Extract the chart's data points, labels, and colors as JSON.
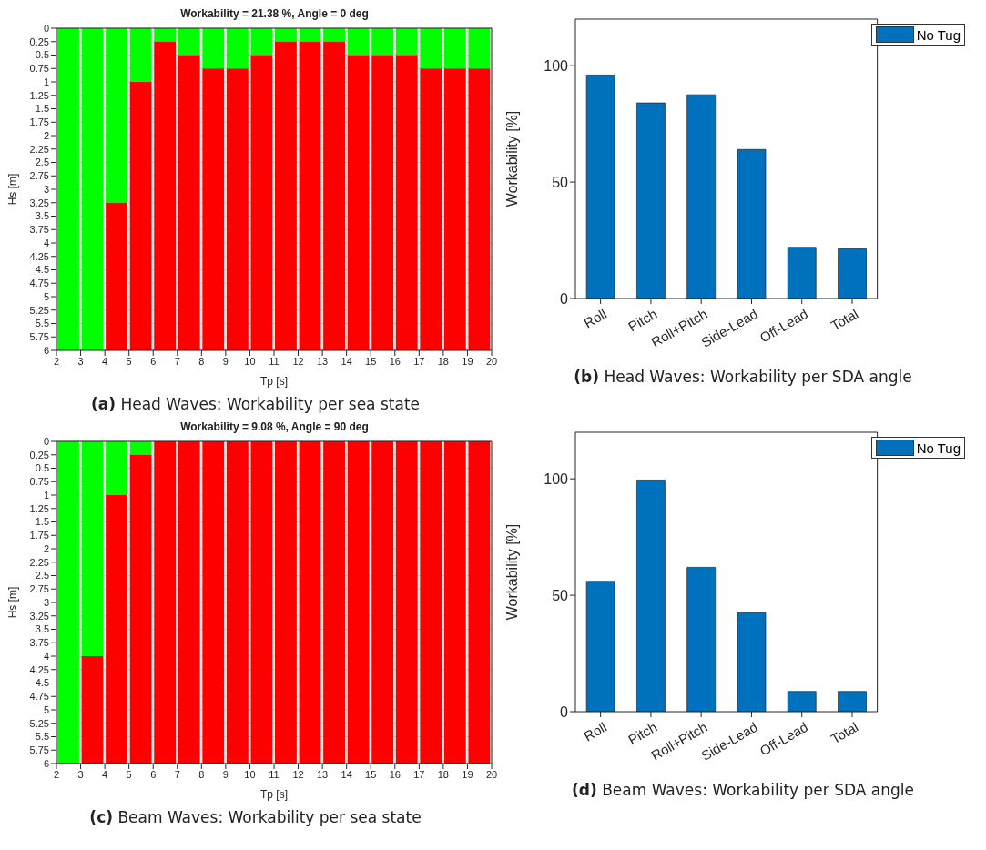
{
  "chart_data": [
    {
      "type": "bar",
      "title": "Workability = 21.38 %, Angle = 0 deg",
      "xlabel": "Tp [s]",
      "ylabel": "Hs [m]",
      "stacked": true,
      "x": [
        2.5,
        3.5,
        4.5,
        5.5,
        6.5,
        7.5,
        8.5,
        9.5,
        10.5,
        11.5,
        12.5,
        13.5,
        14.5,
        15.5,
        16.5,
        17.5,
        18.5,
        19.5
      ],
      "series": [
        {
          "color": "#00ff00",
          "values": [
            6,
            6,
            3.25,
            1,
            0.25,
            0.5,
            0.75,
            0.75,
            0.5,
            0.25,
            0.25,
            0.25,
            0.5,
            0.5,
            0.5,
            0.75,
            0.75,
            0.75
          ]
        },
        {
          "color": "#ff0000",
          "values": [
            0,
            0,
            2.75,
            5,
            5.75,
            5.5,
            5.25,
            5.25,
            5.5,
            5.75,
            5.75,
            5.75,
            5.5,
            5.5,
            5.5,
            5.25,
            5.25,
            5.25
          ]
        }
      ],
      "xlim": [
        2,
        20
      ],
      "xticks": [
        2,
        3,
        4,
        5,
        6,
        7,
        8,
        9,
        10,
        11,
        12,
        13,
        14,
        15,
        16,
        17,
        18,
        19,
        20
      ],
      "ylim": [
        6,
        0
      ],
      "yticks": [
        0,
        0.25,
        0.5,
        0.75,
        1,
        1.25,
        1.5,
        1.75,
        2,
        2.25,
        2.5,
        2.75,
        3,
        3.25,
        3.5,
        3.75,
        4,
        4.25,
        4.5,
        4.75,
        5,
        5.25,
        5.5,
        5.75,
        6
      ],
      "grid": true,
      "annotations": [
        "(a) Head Waves: Workability per sea state"
      ]
    },
    {
      "type": "bar",
      "ylabel": "Workability [%]",
      "categories": [
        "Roll",
        "Pitch",
        "Roll+Pitch",
        "Side-Lead",
        "Off-Lead",
        "Total"
      ],
      "series": [
        {
          "name": "No Tug",
          "color": "#0072bd",
          "values": [
            96,
            84,
            87.5,
            64,
            22,
            21.3
          ]
        }
      ],
      "ylim": [
        0,
        120
      ],
      "yticks": [
        0,
        50,
        100
      ],
      "legend": "top right",
      "annotations": [
        "(b) Head Waves: Workability per SDA angle"
      ]
    },
    {
      "type": "bar",
      "title": "Workability = 9.08 %, Angle = 90 deg",
      "xlabel": "Tp [s]",
      "ylabel": "Hs [m]",
      "stacked": true,
      "x": [
        2.5,
        3.5,
        4.5,
        5.5,
        6.5,
        7.5,
        8.5,
        9.5,
        10.5,
        11.5,
        12.5,
        13.5,
        14.5,
        15.5,
        16.5,
        17.5,
        18.5,
        19.5
      ],
      "series": [
        {
          "color": "#00ff00",
          "values": [
            6,
            4,
            1,
            0.25,
            0,
            0,
            0,
            0,
            0,
            0,
            0,
            0,
            0,
            0,
            0,
            0,
            0,
            0
          ]
        },
        {
          "color": "#ff0000",
          "values": [
            0,
            2,
            5,
            5.75,
            6,
            6,
            6,
            6,
            6,
            6,
            6,
            6,
            6,
            6,
            6,
            6,
            6,
            6
          ]
        }
      ],
      "xlim": [
        2,
        20
      ],
      "xticks": [
        2,
        3,
        4,
        5,
        6,
        7,
        8,
        9,
        10,
        11,
        12,
        13,
        14,
        15,
        16,
        17,
        18,
        19,
        20
      ],
      "ylim": [
        6,
        0
      ],
      "yticks": [
        0,
        0.25,
        0.5,
        0.75,
        1,
        1.25,
        1.5,
        1.75,
        2,
        2.25,
        2.5,
        2.75,
        3,
        3.25,
        3.5,
        3.75,
        4,
        4.25,
        4.5,
        4.75,
        5,
        5.25,
        5.5,
        5.75,
        6
      ],
      "grid": true,
      "annotations": [
        "(c) Beam Waves: Workability per sea state"
      ]
    },
    {
      "type": "bar",
      "ylabel": "Workability [%]",
      "categories": [
        "Roll",
        "Pitch",
        "Roll+Pitch",
        "Side-Lead",
        "Off-Lead",
        "Total"
      ],
      "series": [
        {
          "name": "No Tug",
          "color": "#0072bd",
          "values": [
            56,
            99.5,
            62,
            42.5,
            8.7,
            8.7
          ]
        }
      ],
      "ylim": [
        0,
        120
      ],
      "yticks": [
        0,
        50,
        100
      ],
      "legend": "top right",
      "annotations": [
        "(d) Beam Waves: Workability per SDA angle"
      ]
    }
  ]
}
